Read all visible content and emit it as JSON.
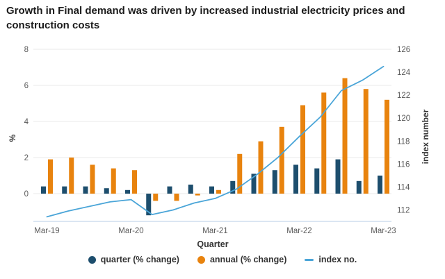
{
  "title": "Growth in Final demand was driven by increased industrial electricity prices and construction costs",
  "chart_data": {
    "type": "bar",
    "subtype": "grouped-bars-with-line-dual-axis",
    "categories": [
      "Mar-19",
      "Jun-19",
      "Sep-19",
      "Dec-19",
      "Mar-20",
      "Jun-20",
      "Sep-20",
      "Dec-20",
      "Mar-21",
      "Jun-21",
      "Sep-21",
      "Dec-21",
      "Mar-22",
      "Jun-22",
      "Sep-22",
      "Dec-22",
      "Mar-23"
    ],
    "x_tick_labels_shown": [
      "Mar-19",
      "Mar-20",
      "Mar-21",
      "Mar-22",
      "Mar-23"
    ],
    "xlabel": "Quarter",
    "ylabel_left": "%",
    "ylabel_right": "index number",
    "y_left_ticks": [
      8,
      6,
      4,
      2,
      0
    ],
    "y_left_range": [
      -1.5,
      8
    ],
    "y_right_ticks": [
      126,
      124,
      122,
      120,
      118,
      116,
      114,
      112
    ],
    "y_right_range": [
      111,
      126
    ],
    "grid": "horizontal",
    "legend_position": "bottom",
    "series": [
      {
        "name": "quarter (% change)",
        "axis": "left",
        "kind": "bar",
        "values": [
          0.4,
          0.4,
          0.4,
          0.3,
          0.2,
          -1.2,
          0.4,
          0.5,
          0.4,
          0.7,
          1.1,
          1.3,
          1.6,
          1.4,
          1.9,
          0.7,
          1.0
        ]
      },
      {
        "name": "annual (% change)",
        "axis": "left",
        "kind": "bar",
        "values": [
          1.9,
          2.0,
          1.6,
          1.4,
          1.3,
          -0.4,
          -0.4,
          -0.1,
          0.2,
          2.2,
          2.9,
          3.7,
          4.9,
          5.6,
          6.4,
          5.8,
          5.2
        ]
      },
      {
        "name": "index no.",
        "axis": "right",
        "kind": "line",
        "values": [
          111.4,
          111.9,
          112.3,
          112.7,
          112.9,
          111.6,
          112.0,
          112.6,
          113.0,
          113.8,
          115.1,
          116.6,
          118.4,
          120.1,
          122.4,
          123.3,
          124.5
        ]
      }
    ]
  },
  "legend": {
    "items": [
      {
        "label": "quarter (% change)",
        "swatch": "dot"
      },
      {
        "label": "annual (% change)",
        "swatch": "dot"
      },
      {
        "label": "index no.",
        "swatch": "dash"
      }
    ]
  },
  "colors": {
    "quarter_bar": "#1d4e6d",
    "annual_bar": "#e8830e",
    "index_line": "#4aa5d8",
    "grid": "#e9e9e9",
    "axis_bottom": "#c5d8ea",
    "tick_text": "#595959",
    "label_text": "#333333",
    "title_text": "#1b1b1b"
  }
}
